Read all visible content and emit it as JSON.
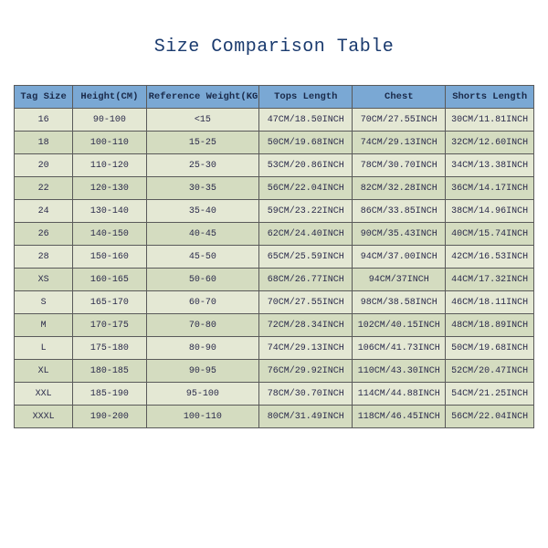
{
  "title": "Size Comparison Table",
  "table": {
    "type": "table",
    "header_bg": "#7aa8d4",
    "row_bg_even": "#d4dcc0",
    "row_bg_odd": "#e4e8d4",
    "border_color": "#5a5a5a",
    "text_color": "#2a2a4a",
    "title_color": "#1a3a6e",
    "title_fontsize": 20,
    "cell_fontsize": 10,
    "columns": [
      "Tag Size",
      "Height(CM)",
      "Reference Weight(KG)",
      "Tops Length",
      "Chest",
      "Shorts Length"
    ],
    "col_widths_pct": [
      11,
      14,
      22,
      18,
      18,
      17
    ],
    "rows": [
      [
        "16",
        "90-100",
        "<15",
        "47CM/18.50INCH",
        "70CM/27.55INCH",
        "30CM/11.81INCH"
      ],
      [
        "18",
        "100-110",
        "15-25",
        "50CM/19.68INCH",
        "74CM/29.13INCH",
        "32CM/12.60INCH"
      ],
      [
        "20",
        "110-120",
        "25-30",
        "53CM/20.86INCH",
        "78CM/30.70INCH",
        "34CM/13.38INCH"
      ],
      [
        "22",
        "120-130",
        "30-35",
        "56CM/22.04INCH",
        "82CM/32.28INCH",
        "36CM/14.17INCH"
      ],
      [
        "24",
        "130-140",
        "35-40",
        "59CM/23.22INCH",
        "86CM/33.85INCH",
        "38CM/14.96INCH"
      ],
      [
        "26",
        "140-150",
        "40-45",
        "62CM/24.40INCH",
        "90CM/35.43INCH",
        "40CM/15.74INCH"
      ],
      [
        "28",
        "150-160",
        "45-50",
        "65CM/25.59INCH",
        "94CM/37.00INCH",
        "42CM/16.53INCH"
      ],
      [
        "XS",
        "160-165",
        "50-60",
        "68CM/26.77INCH",
        "94CM/37INCH",
        "44CM/17.32INCH"
      ],
      [
        "S",
        "165-170",
        "60-70",
        "70CM/27.55INCH",
        "98CM/38.58INCH",
        "46CM/18.11INCH"
      ],
      [
        "M",
        "170-175",
        "70-80",
        "72CM/28.34INCH",
        "102CM/40.15INCH",
        "48CM/18.89INCH"
      ],
      [
        "L",
        "175-180",
        "80-90",
        "74CM/29.13INCH",
        "106CM/41.73INCH",
        "50CM/19.68INCH"
      ],
      [
        "XL",
        "180-185",
        "90-95",
        "76CM/29.92INCH",
        "110CM/43.30INCH",
        "52CM/20.47INCH"
      ],
      [
        "XXL",
        "185-190",
        "95-100",
        "78CM/30.70INCH",
        "114CM/44.88INCH",
        "54CM/21.25INCH"
      ],
      [
        "XXXL",
        "190-200",
        "100-110",
        "80CM/31.49INCH",
        "118CM/46.45INCH",
        "56CM/22.04INCH"
      ]
    ]
  }
}
